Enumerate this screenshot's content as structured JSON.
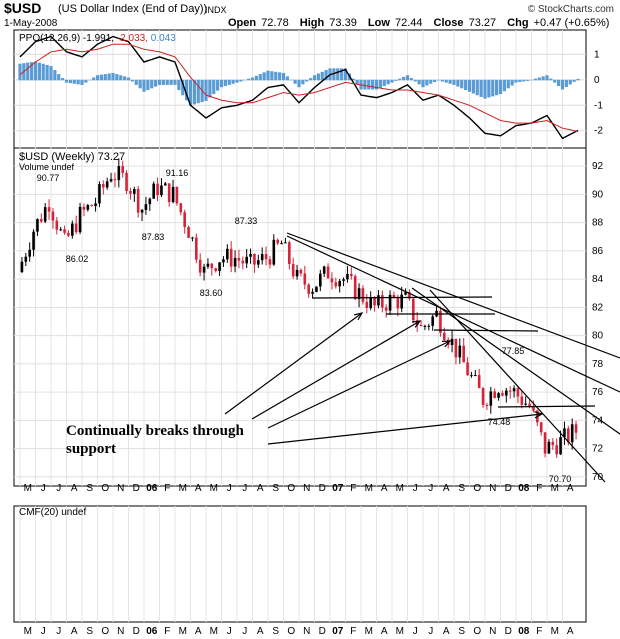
{
  "header": {
    "symbol": "$USD",
    "description": "(US Dollar Index (End of Day))",
    "exchange": "INDX",
    "date": "1-May-2008",
    "credit": "© StockCharts.com",
    "open_label": "Open",
    "open": "72.78",
    "high_label": "High",
    "high": "73.39",
    "low_label": "Low",
    "low": "72.44",
    "close_label": "Close",
    "close": "73.27",
    "chg_label": "Chg",
    "chg": "+0.47 (+0.65%)"
  },
  "ppo_panel": {
    "label_prefix": "PPO(12,26,9)",
    "value1": "-1.991",
    "value2": "-2.033",
    "value3": "0.043",
    "ticks": [
      "1",
      "0",
      "-1",
      "-2"
    ]
  },
  "price_panel": {
    "label": "$USD (Weekly) 73.27",
    "volume_label": "Volume undef",
    "ticks": [
      "92",
      "90",
      "88",
      "86",
      "84",
      "82",
      "80",
      "78",
      "76",
      "74",
      "72",
      "70"
    ],
    "peak_labels": [
      "90.77",
      "86.02",
      "91.16",
      "87.83",
      "87.33",
      "83.60",
      "77.85",
      "74.48",
      "70.70"
    ]
  },
  "cmf_panel": {
    "label": "CMF(20) undef"
  },
  "x_axis": {
    "labels": [
      "M",
      "J",
      "J",
      "A",
      "S",
      "O",
      "N",
      "D",
      "06",
      "F",
      "M",
      "A",
      "M",
      "J",
      "J",
      "A",
      "S",
      "O",
      "N",
      "D",
      "07",
      "F",
      "M",
      "A",
      "M",
      "J",
      "J",
      "A",
      "S",
      "O",
      "N",
      "D",
      "08",
      "F",
      "M",
      "A"
    ]
  },
  "annotation": {
    "line1": "Continually breaks through",
    "line2": "support"
  },
  "colors": {
    "up": "#000000",
    "down": "#d4243a",
    "ppo_line": "#000000",
    "signal_line": "#cc2222",
    "histogram": "#5a9bd4",
    "value3": "#3a86c8"
  },
  "chart_data": [
    {
      "type": "line",
      "title": "PPO(12,26,9)",
      "ylim": [
        -2.6,
        1.8
      ],
      "x": [
        "2005-05",
        "2005-06",
        "2005-07",
        "2005-08",
        "2005-09",
        "2005-10",
        "2005-11",
        "2005-12",
        "2006-01",
        "2006-02",
        "2006-03",
        "2006-04",
        "2006-05",
        "2006-06",
        "2006-07",
        "2006-08",
        "2006-09",
        "2006-10",
        "2006-11",
        "2006-12",
        "2007-01",
        "2007-02",
        "2007-03",
        "2007-04",
        "2007-05",
        "2007-06",
        "2007-07",
        "2007-08",
        "2007-09",
        "2007-10",
        "2007-11",
        "2007-12",
        "2008-01",
        "2008-02",
        "2008-03",
        "2008-04",
        "2008-05"
      ],
      "series": [
        {
          "values": [
            0.9,
            1.5,
            1.7,
            1.1,
            0.9,
            1.4,
            1.7,
            1.5,
            0.7,
            0.9,
            0.7,
            -1.0,
            -1.5,
            -1.1,
            -1.0,
            -0.8,
            -0.3,
            -0.2,
            -0.9,
            -0.3,
            0.2,
            0.4,
            -0.6,
            -0.7,
            -0.5,
            -0.2,
            -0.8,
            -0.6,
            -1.0,
            -1.5,
            -2.1,
            -2.2,
            -1.8,
            -1.7,
            -1.4,
            -2.3,
            -1.99
          ]
        },
        {
          "values": [
            0.2,
            0.7,
            1.1,
            1.2,
            1.1,
            1.2,
            1.4,
            1.4,
            1.2,
            1.1,
            0.9,
            0.1,
            -0.6,
            -0.8,
            -0.9,
            -0.9,
            -0.7,
            -0.5,
            -0.6,
            -0.5,
            -0.3,
            -0.1,
            -0.2,
            -0.3,
            -0.4,
            -0.4,
            -0.5,
            -0.6,
            -0.8,
            -1.0,
            -1.3,
            -1.6,
            -1.7,
            -1.7,
            -1.6,
            -1.9,
            -2.03
          ]
        }
      ]
    },
    {
      "type": "line",
      "title": "$USD (Weekly) 73.27",
      "ylim": [
        69.5,
        93
      ],
      "x": [
        "2005-05",
        "2005-06",
        "2005-07",
        "2005-08",
        "2005-09",
        "2005-10",
        "2005-11",
        "2005-12",
        "2006-01",
        "2006-02",
        "2006-03",
        "2006-04",
        "2006-05",
        "2006-06",
        "2006-07",
        "2006-08",
        "2006-09",
        "2006-10",
        "2006-11",
        "2006-12",
        "2007-01",
        "2007-02",
        "2007-03",
        "2007-04",
        "2007-05",
        "2007-06",
        "2007-07",
        "2007-08",
        "2007-09",
        "2007-10",
        "2007-11",
        "2007-12",
        "2008-01",
        "2008-02",
        "2008-03",
        "2008-04",
        "2008-05"
      ],
      "series": [
        {
          "values": [
            84.5,
            87.5,
            89.5,
            86.5,
            88.5,
            89.5,
            91.5,
            91.0,
            89.0,
            90.5,
            90.0,
            87.5,
            84.5,
            85.5,
            85.5,
            85.0,
            85.5,
            86.5,
            84.0,
            83.5,
            84.5,
            84.0,
            83.0,
            82.0,
            82.5,
            82.5,
            80.5,
            81.5,
            79.5,
            77.5,
            75.5,
            76.5,
            76.0,
            75.0,
            72.0,
            72.5,
            73.27
          ]
        }
      ]
    }
  ]
}
